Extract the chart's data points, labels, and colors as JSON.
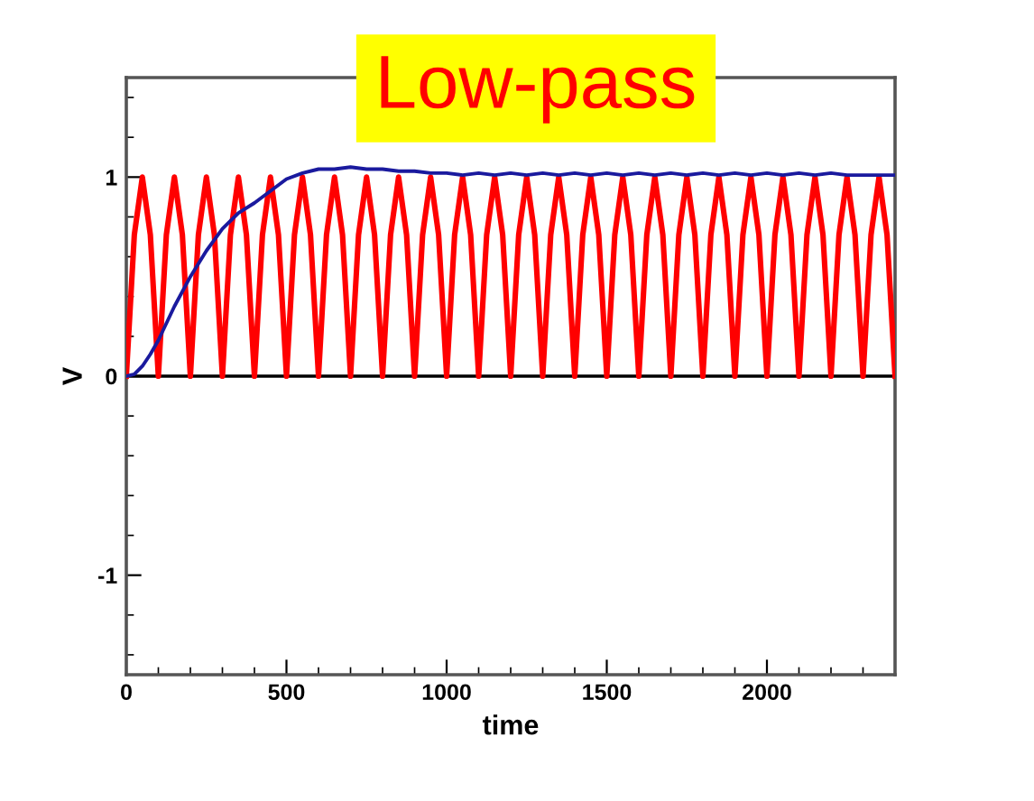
{
  "chart_data": {
    "type": "line",
    "title": "Low-pass",
    "xlabel": "time",
    "ylabel": "V",
    "xlim": [
      0,
      2400
    ],
    "xticks": [
      0,
      500,
      1000,
      1500,
      2000
    ],
    "ylim": [
      -1.5,
      1.5
    ],
    "yticks": [
      -1,
      0,
      1
    ],
    "grid": false,
    "legend": false,
    "marker": "none",
    "line_style": "solid",
    "ref_lines": [
      {
        "axis": "y",
        "value": 0,
        "color": "#000000"
      }
    ],
    "series": [
      {
        "color": "#ff0000",
        "x": [
          0,
          25,
          50,
          75,
          100,
          125,
          150,
          175,
          200,
          225,
          250,
          275,
          300,
          325,
          350,
          375,
          400,
          425,
          450,
          475,
          500,
          525,
          550,
          575,
          600,
          625,
          650,
          675,
          700,
          725,
          750,
          775,
          800,
          825,
          850,
          875,
          900,
          925,
          950,
          975,
          1000,
          1025,
          1050,
          1075,
          1100,
          1125,
          1150,
          1175,
          1200,
          1225,
          1250,
          1275,
          1300,
          1325,
          1350,
          1375,
          1400,
          1425,
          1450,
          1475,
          1500,
          1525,
          1550,
          1575,
          1600,
          1625,
          1650,
          1675,
          1700,
          1725,
          1750,
          1775,
          1800,
          1825,
          1850,
          1875,
          1900,
          1925,
          1950,
          1975,
          2000,
          2025,
          2050,
          2075,
          2100,
          2125,
          2150,
          2175,
          2200,
          2225,
          2250,
          2275,
          2300,
          2325,
          2350,
          2375,
          2400
        ],
        "values": [
          0,
          0.71,
          1,
          0.71,
          0,
          0.71,
          1,
          0.71,
          0,
          0.71,
          1,
          0.71,
          0,
          0.71,
          1,
          0.71,
          0,
          0.71,
          1,
          0.71,
          0,
          0.71,
          1,
          0.71,
          0,
          0.71,
          1,
          0.71,
          0,
          0.71,
          1,
          0.71,
          0,
          0.71,
          1,
          0.71,
          0,
          0.71,
          1,
          0.71,
          0,
          0.71,
          1,
          0.71,
          0,
          0.71,
          1,
          0.71,
          0,
          0.71,
          1,
          0.71,
          0,
          0.71,
          1,
          0.71,
          0,
          0.71,
          1,
          0.71,
          0,
          0.71,
          1,
          0.71,
          0,
          0.71,
          1,
          0.71,
          0,
          0.71,
          1,
          0.71,
          0,
          0.71,
          1,
          0.71,
          0,
          0.71,
          1,
          0.71,
          0,
          0.71,
          1,
          0.71,
          0,
          0.71,
          1,
          0.71,
          0,
          0.71,
          1,
          0.71,
          0,
          0.71,
          1,
          0.71,
          0
        ]
      },
      {
        "color": "#1a1a9e",
        "x": [
          0,
          25,
          50,
          75,
          100,
          150,
          200,
          250,
          300,
          350,
          400,
          450,
          500,
          550,
          600,
          650,
          700,
          750,
          800,
          850,
          900,
          950,
          1000,
          1050,
          1100,
          1150,
          1200,
          1250,
          1300,
          1350,
          1400,
          1450,
          1500,
          1550,
          1600,
          1650,
          1700,
          1750,
          1800,
          1850,
          1900,
          1950,
          2000,
          2050,
          2100,
          2150,
          2200,
          2250,
          2300,
          2350,
          2400
        ],
        "values": [
          0,
          0.01,
          0.05,
          0.11,
          0.18,
          0.35,
          0.5,
          0.63,
          0.74,
          0.82,
          0.87,
          0.93,
          0.99,
          1.02,
          1.04,
          1.04,
          1.05,
          1.04,
          1.04,
          1.03,
          1.03,
          1.02,
          1.02,
          1.01,
          1.02,
          1.01,
          1.02,
          1.01,
          1.02,
          1.01,
          1.02,
          1.01,
          1.02,
          1.01,
          1.02,
          1.01,
          1.02,
          1.01,
          1.02,
          1.01,
          1.02,
          1.01,
          1.02,
          1.01,
          1.02,
          1.01,
          1.02,
          1.01,
          1.01,
          1.01,
          1.01
        ]
      }
    ]
  }
}
